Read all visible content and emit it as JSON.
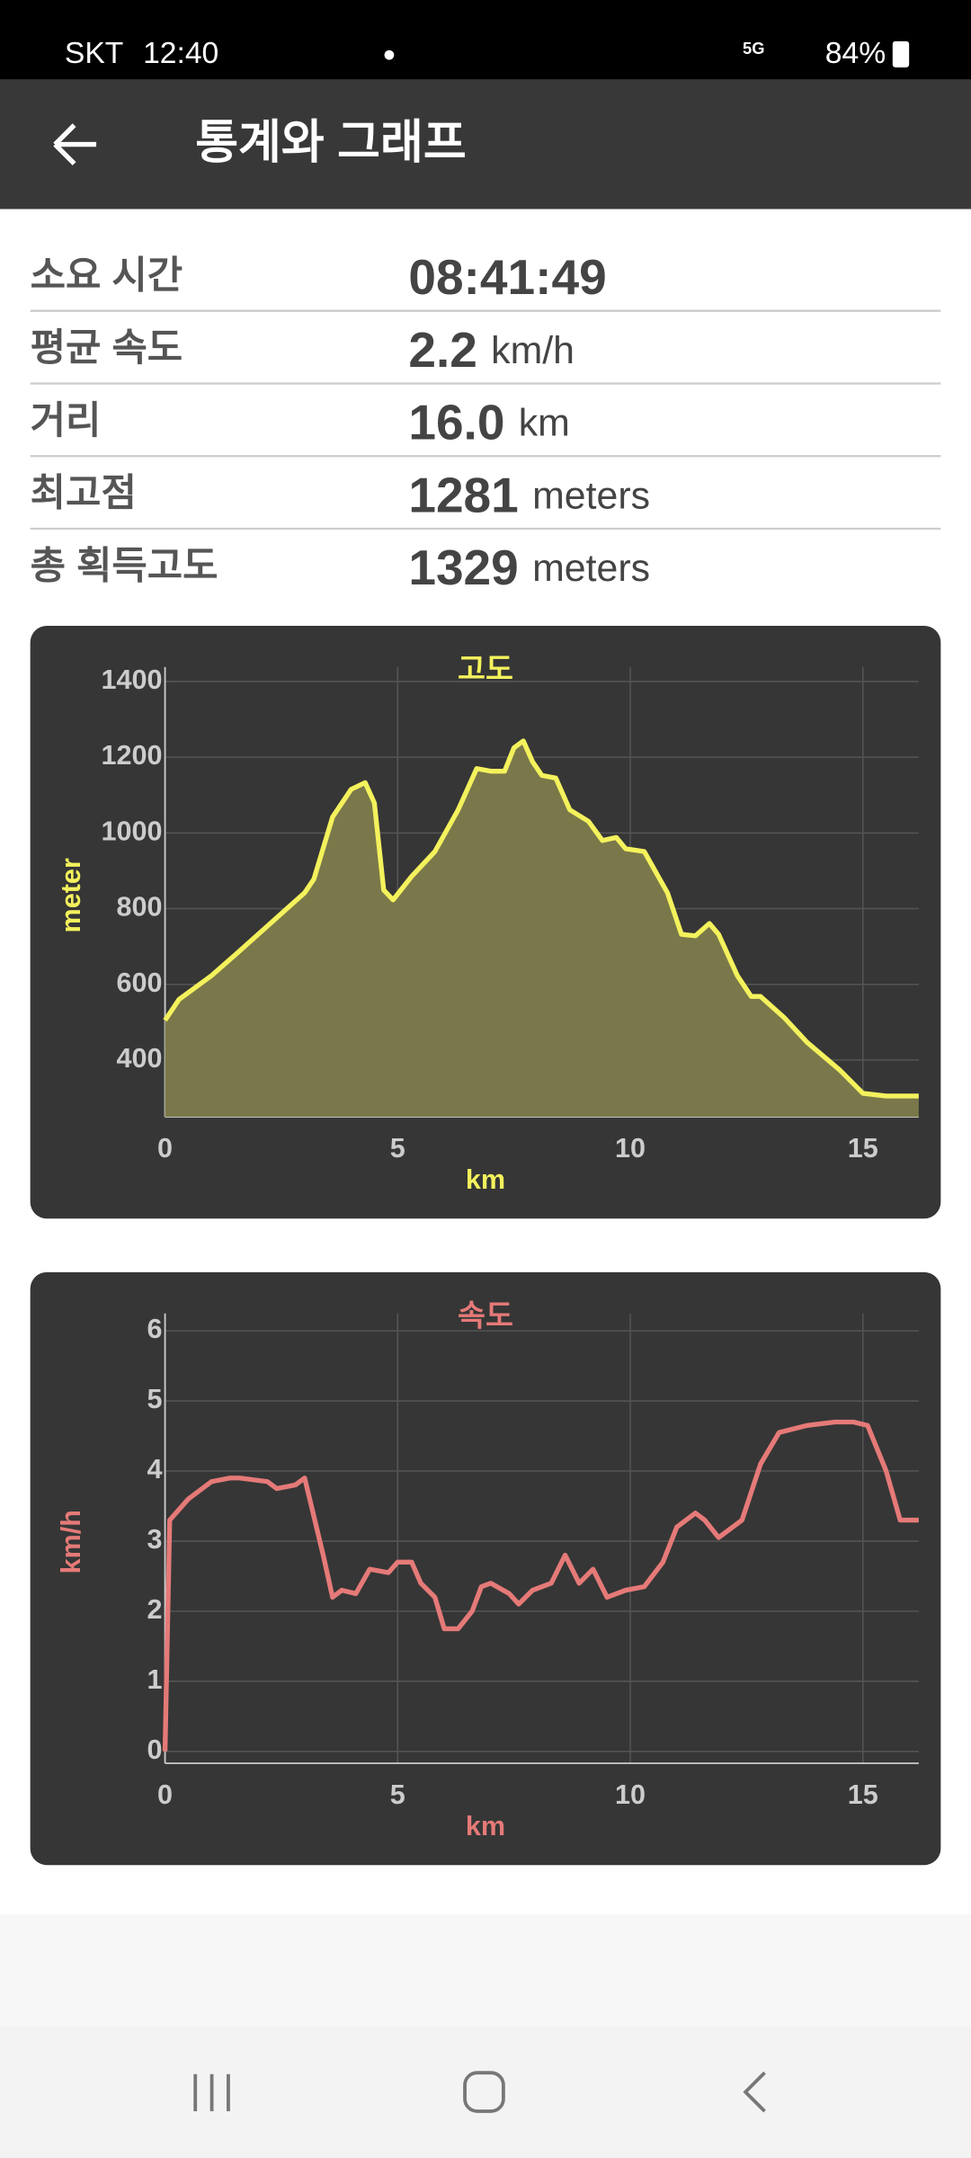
{
  "status_bar": {
    "carrier": "SKT",
    "time": "12:40",
    "network": "5G",
    "battery": "84%"
  },
  "app_bar": {
    "title": "통계와 그래프"
  },
  "stats": [
    {
      "label": "소요 시간",
      "value": "08:41:49"
    },
    {
      "label": "평균 속도",
      "value": "2.2",
      "unit": "km/h"
    },
    {
      "label": "거리",
      "value": "16.0",
      "unit": "km"
    },
    {
      "label": "최고점",
      "value": "1281",
      "unit": "meters"
    },
    {
      "label": "총 획득고도",
      "value": "1329",
      "unit": "meters"
    }
  ],
  "chart_data": [
    {
      "type": "area",
      "title": "고도",
      "x_label": "km",
      "y_label": "meter",
      "color": "#f4f25c",
      "fill": "#7a784a",
      "grid": true,
      "xlim": [
        0,
        16.2
      ],
      "ylim": [
        250,
        1420
      ],
      "xticks": [
        0,
        5,
        10,
        15
      ],
      "yticks": [
        400,
        600,
        800,
        1000,
        1200,
        1400
      ],
      "x": [
        0,
        0.3,
        1,
        1.5,
        2,
        2.5,
        3,
        3.2,
        3.6,
        4,
        4.3,
        4.5,
        4.7,
        4.9,
        5.3,
        5.8,
        6.3,
        6.7,
        7.0,
        7.3,
        7.5,
        7.7,
        7.9,
        8.1,
        8.4,
        8.7,
        9.1,
        9.4,
        9.7,
        9.9,
        10.3,
        10.8,
        11.1,
        11.4,
        11.7,
        11.9,
        12.3,
        12.6,
        12.8,
        13.3,
        13.8,
        14.5,
        15.0,
        15.5,
        16.2
      ],
      "values": [
        505,
        560,
        623,
        677,
        732,
        787,
        842,
        878,
        1042,
        1115,
        1133,
        1079,
        849,
        823,
        885,
        951,
        1061,
        1170,
        1163,
        1163,
        1225,
        1243,
        1188,
        1152,
        1145,
        1061,
        1031,
        980,
        988,
        958,
        951,
        842,
        732,
        728,
        761,
        732,
        623,
        568,
        568,
        513,
        447,
        374,
        312,
        305,
        305
      ]
    },
    {
      "type": "line",
      "title": "속도",
      "x_label": "km",
      "y_label": "km/h",
      "color": "#e57a78",
      "grid": true,
      "xlim": [
        0,
        16.2
      ],
      "ylim": [
        -0.17,
        6.15
      ],
      "xticks": [
        0,
        5,
        10,
        15
      ],
      "yticks": [
        0,
        1,
        2,
        3,
        4,
        5,
        6
      ],
      "x": [
        0,
        0.1,
        0.5,
        1,
        1.4,
        1.6,
        2.2,
        2.4,
        2.8,
        3.0,
        3.4,
        3.6,
        3.8,
        4.1,
        4.4,
        4.8,
        5.0,
        5.3,
        5.5,
        5.8,
        6.0,
        6.3,
        6.6,
        6.8,
        7.0,
        7.4,
        7.6,
        7.9,
        8.3,
        8.6,
        8.9,
        9.2,
        9.5,
        9.9,
        10.3,
        10.7,
        11.0,
        11.4,
        11.6,
        11.9,
        12.4,
        12.8,
        13.2,
        13.8,
        14.4,
        14.8,
        15.1,
        15.5,
        15.8,
        16.2
      ],
      "values": [
        0,
        3.3,
        3.6,
        3.85,
        3.9,
        3.9,
        3.85,
        3.75,
        3.8,
        3.9,
        2.8,
        2.2,
        2.3,
        2.25,
        2.6,
        2.55,
        2.7,
        2.7,
        2.4,
        2.2,
        1.75,
        1.75,
        2.0,
        2.35,
        2.4,
        2.25,
        2.1,
        2.3,
        2.4,
        2.8,
        2.4,
        2.6,
        2.2,
        2.3,
        2.35,
        2.7,
        3.2,
        3.4,
        3.3,
        3.05,
        3.3,
        4.1,
        4.55,
        4.65,
        4.7,
        4.7,
        4.65,
        4.0,
        3.3,
        3.3
      ]
    }
  ]
}
